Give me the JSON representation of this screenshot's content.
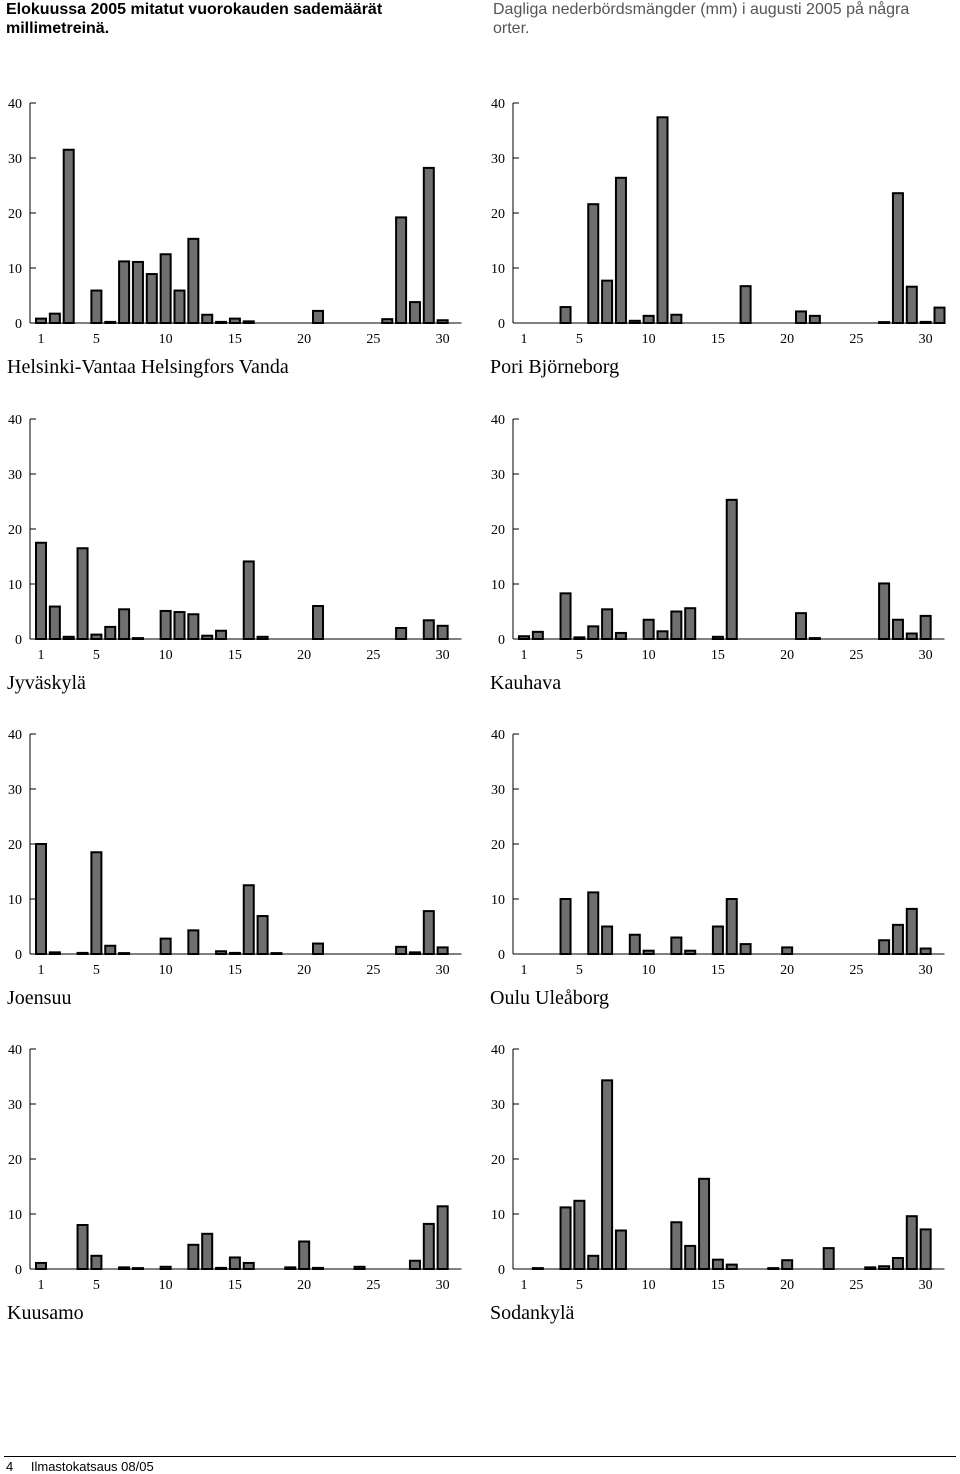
{
  "header": {
    "title_fi": "Elokuussa 2005 mitatut vuorokauden sademäärät millimetreinä.",
    "title_sv": "Dagliga nederbördsmängder (mm) i augusti 2005 på några orter."
  },
  "footer": {
    "page": "4",
    "publication": "Ilmastokatsaus 08/05"
  },
  "chart_data": [
    {
      "type": "bar",
      "title": "Helsinki-Vantaa Helsingfors Vanda",
      "ylim": [
        0,
        40
      ],
      "yticks": [
        0,
        10,
        20,
        30,
        40
      ],
      "xticks": [
        1,
        5,
        10,
        15,
        20,
        25,
        30
      ],
      "x": [
        1,
        2,
        3,
        4,
        5,
        6,
        7,
        8,
        9,
        10,
        11,
        12,
        13,
        14,
        15,
        16,
        17,
        18,
        19,
        20,
        21,
        22,
        23,
        24,
        25,
        26,
        27,
        28,
        29,
        30,
        31
      ],
      "values": [
        0.8,
        1.7,
        31.5,
        0,
        5.9,
        0.2,
        11.2,
        11.1,
        8.9,
        12.5,
        5.9,
        15.3,
        1.5,
        0.2,
        0.8,
        0.3,
        0,
        0,
        0,
        0,
        2.2,
        0,
        0,
        0,
        0,
        0.7,
        19.2,
        3.8,
        28.2,
        0.5,
        0
      ]
    },
    {
      "type": "bar",
      "title": "Pori Björneborg",
      "ylim": [
        0,
        40
      ],
      "yticks": [
        0,
        10,
        20,
        30,
        40
      ],
      "xticks": [
        1,
        5,
        10,
        15,
        20,
        25,
        30
      ],
      "x": [
        1,
        2,
        3,
        4,
        5,
        6,
        7,
        8,
        9,
        10,
        11,
        12,
        13,
        14,
        15,
        16,
        17,
        18,
        19,
        20,
        21,
        22,
        23,
        24,
        25,
        26,
        27,
        28,
        29,
        30,
        31
      ],
      "values": [
        0,
        0,
        0,
        2.9,
        0,
        21.6,
        7.7,
        26.4,
        0.4,
        1.3,
        37.4,
        1.5,
        0,
        0,
        0,
        0,
        6.7,
        0,
        0,
        0,
        2.1,
        1.3,
        0,
        0,
        0,
        0,
        0.1,
        23.6,
        6.6,
        0.2,
        2.8
      ]
    },
    {
      "type": "bar",
      "title": "Jyväskylä",
      "ylim": [
        0,
        40
      ],
      "yticks": [
        0,
        10,
        20,
        30,
        40
      ],
      "xticks": [
        1,
        5,
        10,
        15,
        20,
        25,
        30
      ],
      "x": [
        1,
        2,
        3,
        4,
        5,
        6,
        7,
        8,
        9,
        10,
        11,
        12,
        13,
        14,
        15,
        16,
        17,
        18,
        19,
        20,
        21,
        22,
        23,
        24,
        25,
        26,
        27,
        28,
        29,
        30,
        31
      ],
      "values": [
        17.5,
        5.9,
        0.4,
        16.5,
        0.8,
        2.2,
        5.4,
        0.1,
        0,
        5.1,
        4.9,
        4.5,
        0.6,
        1.5,
        0,
        14.1,
        0.4,
        0,
        0,
        0,
        6.0,
        0,
        0,
        0,
        0,
        0,
        2.0,
        0,
        3.4,
        2.4,
        0
      ]
    },
    {
      "type": "bar",
      "title": "Kauhava",
      "ylim": [
        0,
        40
      ],
      "yticks": [
        0,
        10,
        20,
        30,
        40
      ],
      "xticks": [
        1,
        5,
        10,
        15,
        20,
        25,
        30
      ],
      "x": [
        1,
        2,
        3,
        4,
        5,
        6,
        7,
        8,
        9,
        10,
        11,
        12,
        13,
        14,
        15,
        16,
        17,
        18,
        19,
        20,
        21,
        22,
        23,
        24,
        25,
        26,
        27,
        28,
        29,
        30,
        31
      ],
      "values": [
        0.5,
        1.3,
        0,
        8.3,
        0.3,
        2.3,
        5.4,
        1.1,
        0,
        3.5,
        1.4,
        5.0,
        5.6,
        0,
        0.4,
        25.3,
        0,
        0,
        0,
        0,
        4.7,
        0.1,
        0,
        0,
        0,
        0,
        10.1,
        3.5,
        1.0,
        4.2,
        0
      ]
    },
    {
      "type": "bar",
      "title": "Joensuu",
      "ylim": [
        0,
        40
      ],
      "yticks": [
        0,
        10,
        20,
        30,
        40
      ],
      "xticks": [
        1,
        5,
        10,
        15,
        20,
        25,
        30
      ],
      "x": [
        1,
        2,
        3,
        4,
        5,
        6,
        7,
        8,
        9,
        10,
        11,
        12,
        13,
        14,
        15,
        16,
        17,
        18,
        19,
        20,
        21,
        22,
        23,
        24,
        25,
        26,
        27,
        28,
        29,
        30,
        31
      ],
      "values": [
        20.0,
        0.3,
        0,
        0.2,
        18.5,
        1.5,
        0.1,
        0,
        0,
        2.8,
        0,
        4.3,
        0,
        0.5,
        0.2,
        12.5,
        6.9,
        0.1,
        0,
        0,
        1.9,
        0,
        0,
        0,
        0,
        0,
        1.3,
        0.3,
        7.8,
        1.2,
        0
      ]
    },
    {
      "type": "bar",
      "title": "Oulu Uleåborg",
      "ylim": [
        0,
        40
      ],
      "yticks": [
        0,
        10,
        20,
        30,
        40
      ],
      "xticks": [
        1,
        5,
        10,
        15,
        20,
        25,
        30
      ],
      "x": [
        1,
        2,
        3,
        4,
        5,
        6,
        7,
        8,
        9,
        10,
        11,
        12,
        13,
        14,
        15,
        16,
        17,
        18,
        19,
        20,
        21,
        22,
        23,
        24,
        25,
        26,
        27,
        28,
        29,
        30,
        31
      ],
      "values": [
        0,
        0,
        0,
        10.0,
        0,
        11.2,
        5.0,
        0,
        3.5,
        0.6,
        0,
        3.0,
        0.6,
        0,
        5.0,
        10.0,
        1.8,
        0,
        0,
        1.2,
        0,
        0,
        0,
        0,
        0,
        0,
        2.5,
        5.3,
        8.2,
        1.0,
        0
      ]
    },
    {
      "type": "bar",
      "title": "Kuusamo",
      "ylim": [
        0,
        40
      ],
      "yticks": [
        0,
        10,
        20,
        30,
        40
      ],
      "xticks": [
        1,
        5,
        10,
        15,
        20,
        25,
        30
      ],
      "x": [
        1,
        2,
        3,
        4,
        5,
        6,
        7,
        8,
        9,
        10,
        11,
        12,
        13,
        14,
        15,
        16,
        17,
        18,
        19,
        20,
        21,
        22,
        23,
        24,
        25,
        26,
        27,
        28,
        29,
        30,
        31
      ],
      "values": [
        1.1,
        0,
        0,
        8.0,
        2.4,
        0,
        0.3,
        0.1,
        0,
        0.4,
        0,
        4.4,
        6.4,
        0.2,
        2.1,
        1.1,
        0,
        0,
        0.3,
        5.0,
        0.2,
        0,
        0,
        0.4,
        0,
        0,
        0,
        1.5,
        8.2,
        11.4,
        0
      ]
    },
    {
      "type": "bar",
      "title": "Sodankylä",
      "ylim": [
        0,
        40
      ],
      "yticks": [
        0,
        10,
        20,
        30,
        40
      ],
      "xticks": [
        1,
        5,
        10,
        15,
        20,
        25,
        30
      ],
      "x": [
        1,
        2,
        3,
        4,
        5,
        6,
        7,
        8,
        9,
        10,
        11,
        12,
        13,
        14,
        15,
        16,
        17,
        18,
        19,
        20,
        21,
        22,
        23,
        24,
        25,
        26,
        27,
        28,
        29,
        30,
        31
      ],
      "values": [
        0,
        0.1,
        0,
        11.2,
        12.4,
        2.4,
        34.3,
        7.0,
        0,
        0,
        0,
        8.5,
        4.2,
        16.4,
        1.7,
        0.8,
        0,
        0,
        0.1,
        1.6,
        0,
        0,
        3.8,
        0,
        0,
        0.3,
        0.5,
        2.0,
        9.6,
        7.2,
        0
      ]
    }
  ]
}
